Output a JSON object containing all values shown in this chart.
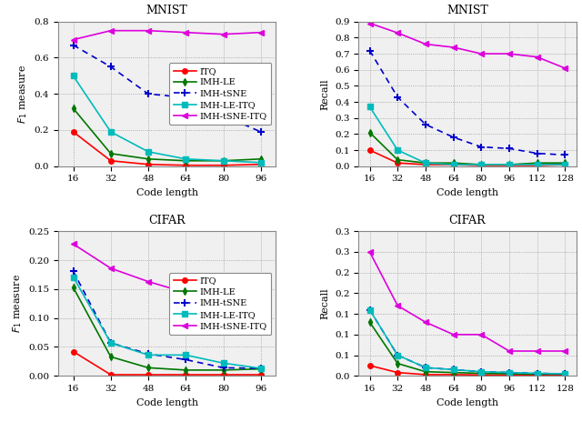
{
  "mnist_f1": {
    "x": [
      16,
      32,
      48,
      64,
      80,
      96
    ],
    "ITQ": [
      0.19,
      0.03,
      0.01,
      0.005,
      0.005,
      0.01
    ],
    "IMH_LE": [
      0.32,
      0.07,
      0.04,
      0.03,
      0.03,
      0.04
    ],
    "IMH_tSNE": [
      0.67,
      0.55,
      0.4,
      0.38,
      0.28,
      0.19
    ],
    "IMH_LE_ITQ": [
      0.5,
      0.19,
      0.08,
      0.04,
      0.03,
      0.02
    ],
    "IMH_tSNE_ITQ": [
      0.7,
      0.75,
      0.75,
      0.74,
      0.73,
      0.74
    ],
    "ylim": [
      0,
      0.8
    ],
    "yticks": [
      0,
      0.2,
      0.4,
      0.6,
      0.8
    ],
    "ylabel": "F_1 measure",
    "xlabel": "Code length",
    "title": "MNIST",
    "show_legend": true
  },
  "mnist_recall": {
    "x": [
      16,
      32,
      48,
      64,
      80,
      96,
      112,
      128
    ],
    "ITQ": [
      0.1,
      0.02,
      0.01,
      0.01,
      0.005,
      0.005,
      0.005,
      0.01
    ],
    "IMH_LE": [
      0.21,
      0.04,
      0.02,
      0.02,
      0.01,
      0.01,
      0.02,
      0.02
    ],
    "IMH_tSNE": [
      0.72,
      0.43,
      0.26,
      0.18,
      0.12,
      0.11,
      0.08,
      0.07
    ],
    "IMH_LE_ITQ": [
      0.37,
      0.1,
      0.02,
      0.01,
      0.01,
      0.01,
      0.01,
      0.01
    ],
    "IMH_tSNE_ITQ": [
      0.89,
      0.83,
      0.76,
      0.74,
      0.7,
      0.7,
      0.68,
      0.61
    ],
    "ylim": [
      0,
      0.9
    ],
    "yticks": [
      0,
      0.1,
      0.2,
      0.3,
      0.4,
      0.5,
      0.6,
      0.7,
      0.8,
      0.9
    ],
    "ylabel": "Recall",
    "xlabel": "Code length",
    "title": "MNIST",
    "show_legend": false
  },
  "cifar_f1": {
    "x": [
      16,
      32,
      48,
      64,
      80,
      96
    ],
    "ITQ": [
      0.042,
      0.002,
      0.002,
      0.002,
      0.002,
      0.002
    ],
    "IMH_LE": [
      0.153,
      0.033,
      0.014,
      0.01,
      0.01,
      0.012
    ],
    "IMH_tSNE": [
      0.181,
      0.057,
      0.038,
      0.028,
      0.014,
      0.013
    ],
    "IMH_LE_ITQ": [
      0.171,
      0.057,
      0.036,
      0.036,
      0.022,
      0.013
    ],
    "IMH_tSNE_ITQ": [
      0.228,
      0.186,
      0.163,
      0.144,
      0.133,
      0.103
    ],
    "ylim": [
      0,
      0.25
    ],
    "yticks": [
      0,
      0.05,
      0.1,
      0.15,
      0.2,
      0.25
    ],
    "ylabel": "F_1 measure",
    "xlabel": "Code length",
    "title": "CIFAR",
    "show_legend": true
  },
  "cifar_recall": {
    "x": [
      16,
      32,
      48,
      64,
      80,
      96,
      112,
      128
    ],
    "ITQ": [
      0.025,
      0.008,
      0.003,
      0.003,
      0.002,
      0.002,
      0.002,
      0.002
    ],
    "IMH_LE": [
      0.13,
      0.03,
      0.01,
      0.008,
      0.006,
      0.005,
      0.004,
      0.004
    ],
    "IMH_tSNE": [
      0.16,
      0.05,
      0.02,
      0.015,
      0.01,
      0.008,
      0.006,
      0.005
    ],
    "IMH_LE_ITQ": [
      0.16,
      0.05,
      0.02,
      0.015,
      0.01,
      0.008,
      0.006,
      0.005
    ],
    "IMH_tSNE_ITQ": [
      0.3,
      0.17,
      0.13,
      0.1,
      0.1,
      0.06,
      0.06,
      0.06
    ],
    "ylim": [
      0,
      0.35
    ],
    "yticks": [
      0,
      0.05,
      0.1,
      0.15,
      0.2,
      0.25,
      0.3,
      0.35
    ],
    "ylabel": "Recall",
    "xlabel": "Code length",
    "title": "CIFAR",
    "show_legend": false
  },
  "series": [
    {
      "key": "ITQ",
      "label": "ITQ",
      "color": "#ff0000",
      "marker": "o",
      "linestyle": "-",
      "is_dashed": false
    },
    {
      "key": "IMH_LE",
      "label": "IMH-LE",
      "color": "#007700",
      "marker": "d",
      "linestyle": "-",
      "is_dashed": false
    },
    {
      "key": "IMH_tSNE",
      "label": "IMH-tSNE",
      "color": "#0000cc",
      "marker": "+",
      "linestyle": "--",
      "is_dashed": true
    },
    {
      "key": "IMH_LE_ITQ",
      "label": "IMH-LE-ITQ",
      "color": "#00bbbb",
      "marker": "s",
      "linestyle": "-",
      "is_dashed": false
    },
    {
      "key": "IMH_tSNE_ITQ",
      "label": "IMH-tSNE-ITQ",
      "color": "#dd00dd",
      "marker": "<",
      "linestyle": "-",
      "is_dashed": false
    }
  ],
  "bg_color": "#f0f0f0",
  "grid_color": "#999999",
  "grid_linestyle": ":",
  "fig_bg": "#ffffff"
}
